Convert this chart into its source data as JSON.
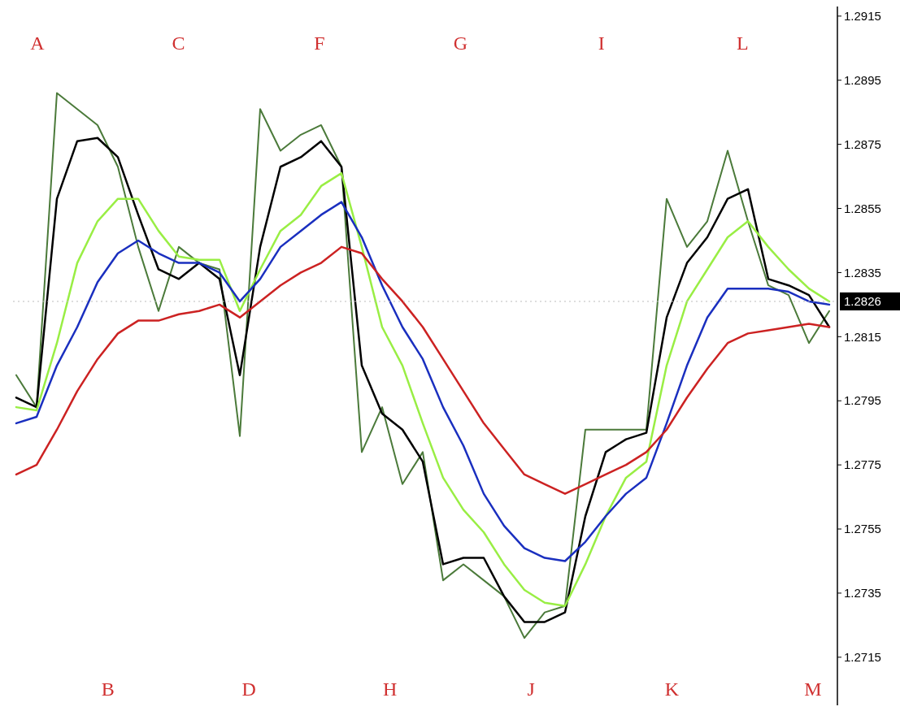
{
  "chart_data": {
    "type": "line",
    "tick_labels": "y",
    "ylim": [
      1.27,
      1.2918
    ],
    "yticks": [
      1.2715,
      1.2735,
      1.2755,
      1.2775,
      1.2795,
      1.2815,
      1.2835,
      1.2855,
      1.2875,
      1.2895,
      1.2915
    ],
    "categories": [
      null,
      null,
      null,
      null,
      null,
      null,
      null,
      null,
      null,
      null,
      null,
      null,
      null,
      null,
      null,
      null,
      null,
      null,
      null,
      null,
      null,
      null,
      null,
      null,
      null,
      null,
      null,
      null,
      null,
      null,
      null,
      null,
      null,
      null,
      null,
      null,
      null,
      null,
      null,
      null,
      null
    ],
    "series": [
      {
        "color": "#4b7a3a",
        "values": [
          1.2803,
          1.2793,
          1.2891,
          1.2886,
          1.2881,
          1.2868,
          1.2843,
          1.2823,
          1.2843,
          1.2838,
          1.2836,
          1.2784,
          1.2886,
          1.2873,
          1.2878,
          1.2881,
          1.2868,
          1.2779,
          1.2793,
          1.2769,
          1.2779,
          1.2739,
          1.2744,
          1.2739,
          1.2734,
          1.2721,
          1.2729,
          1.2731,
          1.2786,
          1.2786,
          1.2786,
          1.2786,
          1.2858,
          1.2843,
          1.2851,
          1.2873,
          1.2851,
          1.2831,
          1.2828,
          1.2813,
          1.2823
        ]
      },
      {
        "color": "#000000",
        "values": [
          1.2796,
          1.2793,
          1.2858,
          1.2876,
          1.2877,
          1.2871,
          1.2853,
          1.2836,
          1.2833,
          1.2838,
          1.2833,
          1.2803,
          1.2843,
          1.2868,
          1.2871,
          1.2876,
          1.2868,
          1.2806,
          1.2791,
          1.2786,
          1.2776,
          1.2744,
          1.2746,
          1.2746,
          1.2734,
          1.2726,
          1.2726,
          1.2729,
          1.2759,
          1.2779,
          1.2783,
          1.2785,
          1.2821,
          1.2838,
          1.2846,
          1.2858,
          1.2861,
          1.2833,
          1.2831,
          1.2828,
          1.2818
        ]
      },
      {
        "color": "#99ee44",
        "values": [
          1.2793,
          1.2792,
          1.2813,
          1.2838,
          1.2851,
          1.2858,
          1.2858,
          1.2848,
          1.284,
          1.2839,
          1.2839,
          1.2823,
          1.2836,
          1.2848,
          1.2853,
          1.2862,
          1.2866,
          1.2843,
          1.2818,
          1.2806,
          1.2788,
          1.2771,
          1.2761,
          1.2754,
          1.2744,
          1.2736,
          1.2732,
          1.2731,
          1.2744,
          1.2759,
          1.2771,
          1.2776,
          1.2806,
          1.2826,
          1.2836,
          1.2846,
          1.2851,
          1.2843,
          1.2836,
          1.283,
          1.2826
        ]
      },
      {
        "color": "#1a2fbf",
        "values": [
          1.2788,
          1.279,
          1.2806,
          1.2818,
          1.2832,
          1.2841,
          1.2845,
          1.2841,
          1.2838,
          1.2838,
          1.2835,
          1.2826,
          1.2833,
          1.2843,
          1.2848,
          1.2853,
          1.2857,
          1.2846,
          1.2831,
          1.2818,
          1.2808,
          1.2793,
          1.2781,
          1.2766,
          1.2756,
          1.2749,
          1.2746,
          1.2745,
          1.2751,
          1.2759,
          1.2766,
          1.2771,
          1.2788,
          1.2806,
          1.2821,
          1.283,
          1.283,
          1.283,
          1.2829,
          1.2826,
          1.2825
        ]
      },
      {
        "color": "#cc2222",
        "values": [
          1.2772,
          1.2775,
          1.2786,
          1.2798,
          1.2808,
          1.2816,
          1.282,
          1.282,
          1.2822,
          1.2823,
          1.2825,
          1.2821,
          1.2826,
          1.2831,
          1.2835,
          1.2838,
          1.2843,
          1.2841,
          1.2833,
          1.2826,
          1.2818,
          1.2808,
          1.2798,
          1.2788,
          1.278,
          1.2772,
          1.2769,
          1.2766,
          1.2769,
          1.2772,
          1.2775,
          1.2779,
          1.2786,
          1.2796,
          1.2805,
          1.2813,
          1.2816,
          1.2817,
          1.2818,
          1.2819,
          1.2818
        ]
      }
    ],
    "ref_lines": [
      {
        "axis": "y",
        "value": 1.2826,
        "label": "1.2826",
        "color": "#bbbbbb",
        "line_style": "dotted"
      }
    ],
    "annotations": [
      "A",
      "B",
      "C",
      "D",
      "F",
      "H",
      "G",
      "J",
      "I",
      "K",
      "L",
      "M"
    ]
  }
}
